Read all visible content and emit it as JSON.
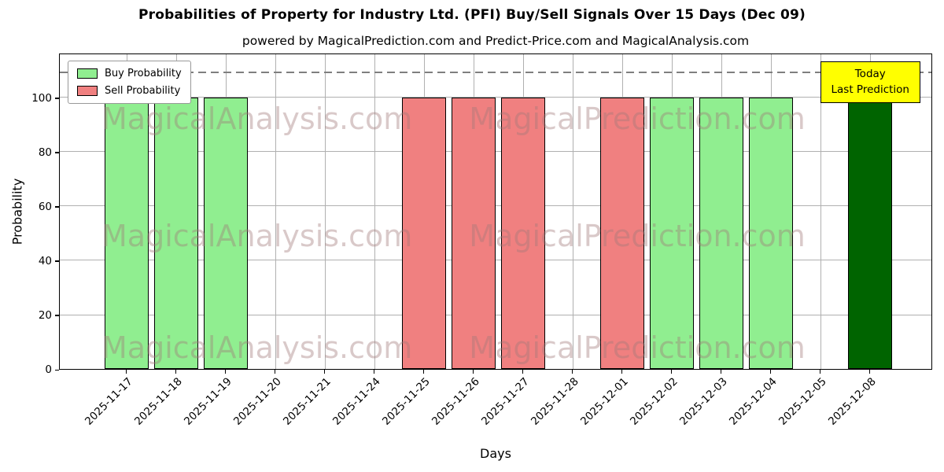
{
  "title": "Probabilities of Property for Industry Ltd. (PFI) Buy/Sell Signals Over 15 Days (Dec 09)",
  "subtitle": "powered by MagicalPrediction.com and Predict-Price.com and MagicalAnalysis.com",
  "legend": {
    "buy_label": "Buy Probability",
    "sell_label": "Sell Probability"
  },
  "annotation": {
    "line1": "Today",
    "line2": "Last Prediction"
  },
  "watermark": {
    "left_text": "MagicalAnalysis.com",
    "right_text": "MagicalPrediction.com"
  },
  "colors": {
    "buy": "#90ee90",
    "sell": "#f08080",
    "today": "#006400",
    "bar_edge": "#000000",
    "grid": "#b0b0b0",
    "dashed_line": "#7f7f7f",
    "annotation_bg": "#ffff00",
    "annotation_border": "#000000",
    "watermark": "rgba(160,120,120,0.4)"
  },
  "chart_data": {
    "type": "bar",
    "title": "Probabilities of Property for Industry Ltd. (PFI) Buy/Sell Signals Over 15 Days (Dec 09)",
    "xlabel": "Days",
    "ylabel": "Probability",
    "ylim": [
      0,
      116.5
    ],
    "yticks": [
      0,
      20,
      40,
      60,
      80,
      100
    ],
    "dashed_line_y": 110,
    "grid": true,
    "legend_position": "upper-left",
    "categories": [
      "2025-11-17",
      "2025-11-18",
      "2025-11-19",
      "2025-11-20",
      "2025-11-21",
      "2025-11-24",
      "2025-11-25",
      "2025-11-26",
      "2025-11-27",
      "2025-11-28",
      "2025-12-01",
      "2025-12-02",
      "2025-12-03",
      "2025-12-04",
      "2025-12-05",
      "2025-12-08"
    ],
    "series": [
      {
        "name": "Buy Probability",
        "key": "buy",
        "values": [
          100,
          100,
          100,
          0,
          0,
          0,
          0,
          0,
          0,
          0,
          0,
          100,
          100,
          100,
          0,
          0
        ]
      },
      {
        "name": "Sell Probability",
        "key": "sell",
        "values": [
          0,
          0,
          0,
          0,
          0,
          0,
          100,
          100,
          100,
          0,
          100,
          0,
          0,
          0,
          0,
          0
        ]
      },
      {
        "name": "Today Last Prediction (Buy)",
        "key": "today",
        "values": [
          0,
          0,
          0,
          0,
          0,
          0,
          0,
          0,
          0,
          0,
          0,
          0,
          0,
          0,
          0,
          100
        ]
      }
    ]
  }
}
